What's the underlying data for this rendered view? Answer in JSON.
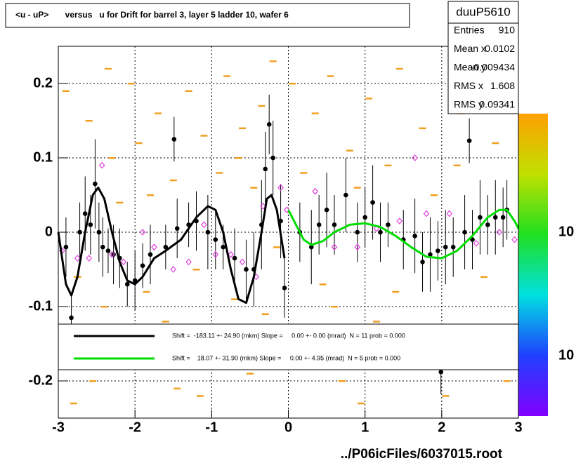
{
  "chart_data": {
    "type": "scatter",
    "title": "<u - uP>       versus   u for Drift for barrel 3, layer 5 ladder 10, wafer 6",
    "x_label": "../P06icFiles/6037015.root",
    "xlim": [
      -3,
      3
    ],
    "ylim": [
      -0.25,
      0.25
    ],
    "xticks": [
      -3,
      -2,
      -1,
      0,
      1,
      2,
      3
    ],
    "yticks": [
      -0.2,
      -0.1,
      0,
      0.1,
      0.2
    ],
    "grid": true,
    "stats": {
      "title": "duuP5610",
      "rows": [
        {
          "label": "Entries",
          "value": 910
        },
        {
          "label": "Mean x",
          "value": 0.0102
        },
        {
          "label": "Mean y",
          "value": -0.009434
        },
        {
          "label": "RMS x",
          "value": 1.608
        },
        {
          "label": "RMS y",
          "value": 0.09341
        }
      ]
    },
    "palette_labels": [
      "10",
      "10"
    ],
    "hits": {
      "color": "#f0a020",
      "x": [
        -2.9,
        -2.75,
        -2.6,
        -2.55,
        -2.4,
        -2.35,
        -2.2,
        -2.1,
        -2.05,
        -1.95,
        -1.85,
        -1.7,
        -1.6,
        -1.5,
        -1.45,
        -1.3,
        -1.2,
        -1.1,
        -1.05,
        -0.9,
        -0.8,
        -0.7,
        -0.6,
        -0.5,
        -0.45,
        -0.35,
        -0.3,
        -0.2,
        -0.15,
        0.05,
        0.15,
        0.2,
        0.35,
        0.45,
        0.55,
        0.7,
        0.8,
        0.9,
        1.05,
        1.15,
        1.3,
        1.45,
        1.6,
        1.75,
        1.9,
        2.05,
        2.25,
        2.4,
        2.55,
        2.7,
        2.85,
        -2.3,
        -1.8,
        -0.65,
        0.6,
        1.4,
        2.2,
        -2.8,
        -1.15,
        0.95
      ],
      "values": [
        0.19,
        -0.06,
        0.15,
        -0.2,
        -0.1,
        0.22,
        0.04,
        -0.17,
        0.2,
        0.12,
        -0.08,
        0.16,
        -0.12,
        0.07,
        -0.21,
        0.19,
        -0.05,
        0.13,
        -0.18,
        0.08,
        0.21,
        -0.09,
        0.14,
        -0.19,
        0.06,
        0.17,
        -0.11,
        0.23,
        -0.02,
        0.2,
        -0.15,
        0.08,
        0.16,
        -0.07,
        0.21,
        -0.2,
        0.11,
        0.06,
        0.18,
        -0.12,
        0.09,
        0.22,
        -0.18,
        0.14,
        0.05,
        -0.22,
        0.16,
        0.2,
        -0.06,
        0.12,
        -0.2,
        0.1,
        0.05,
        0.1,
        -0.1,
        -0.08,
        0.09,
        -0.23,
        -0.22,
        -0.23
      ]
    },
    "series": [
      {
        "name": "profile",
        "color": "#000000",
        "x": [
          -2.9,
          -2.83,
          -2.72,
          -2.65,
          -2.58,
          -2.52,
          -2.47,
          -2.42,
          -2.35,
          -2.28,
          -2.2,
          -2.1,
          -2.0,
          -1.9,
          -1.8,
          -1.6,
          -1.49,
          -1.45,
          -1.3,
          -1.2,
          -1.05,
          -0.95,
          -0.85,
          -0.7,
          -0.55,
          -0.45,
          -0.35,
          -0.3,
          -0.25,
          -0.2,
          -0.1,
          -0.05,
          0.15,
          0.3,
          0.4,
          0.5,
          0.6,
          0.75,
          0.9,
          1.0,
          1.1,
          1.2,
          1.3,
          1.5,
          1.65,
          1.75,
          1.85,
          1.95,
          1.99,
          2.05,
          2.15,
          2.3,
          2.36,
          2.4,
          2.5,
          2.6,
          2.7,
          2.8,
          2.85
        ],
        "values": [
          -0.02,
          -0.115,
          0.0,
          0.025,
          0.01,
          0.065,
          0.0,
          -0.02,
          -0.025,
          -0.03,
          -0.035,
          -0.07,
          -0.065,
          -0.045,
          -0.03,
          -0.02,
          0.125,
          0.005,
          0.01,
          0.015,
          0.0,
          -0.01,
          -0.02,
          -0.035,
          -0.05,
          -0.05,
          0.01,
          0.085,
          0.145,
          0.1,
          0.015,
          -0.075,
          0.0,
          -0.02,
          0.01,
          0.03,
          0.01,
          0.05,
          0.0,
          0.02,
          0.04,
          0.0,
          0.01,
          -0.01,
          -0.005,
          -0.04,
          -0.03,
          -0.025,
          -0.188,
          -0.02,
          -0.02,
          0.0,
          0.123,
          -0.01,
          0.02,
          0.01,
          0.02,
          0.02,
          0.03
        ],
        "errors": [
          0.04,
          0.03,
          0.04,
          0.05,
          0.04,
          0.06,
          0.04,
          0.04,
          0.03,
          0.04,
          0.04,
          0.03,
          0.04,
          0.03,
          0.04,
          0.03,
          0.03,
          0.04,
          0.03,
          0.04,
          0.05,
          0.04,
          0.03,
          0.04,
          0.04,
          0.05,
          0.06,
          0.05,
          0.04,
          0.05,
          0.05,
          0.04,
          0.04,
          0.05,
          0.04,
          0.05,
          0.04,
          0.05,
          0.04,
          0.04,
          0.05,
          0.04,
          0.03,
          0.04,
          0.05,
          0.04,
          0.05,
          0.04,
          0.03,
          0.05,
          0.04,
          0.05,
          0.03,
          0.04,
          0.05,
          0.04,
          0.05,
          0.04,
          0.04
        ]
      },
      {
        "name": "mean",
        "color": "#e040e0",
        "x": [
          -2.95,
          -2.75,
          -2.6,
          -2.43,
          -2.3,
          -2.15,
          -1.9,
          -1.75,
          -1.5,
          -1.3,
          -1.1,
          -0.95,
          -0.75,
          -0.6,
          -0.42,
          -0.33,
          -0.1,
          -0.02,
          0.35,
          0.6,
          0.9,
          1.15,
          1.45,
          1.65,
          1.8,
          2.1,
          2.45,
          2.75,
          2.95
        ],
        "values": [
          -0.025,
          -0.035,
          -0.035,
          0.09,
          -0.03,
          -0.04,
          0.0,
          -0.02,
          -0.05,
          -0.04,
          0.01,
          -0.03,
          -0.03,
          -0.04,
          -0.06,
          0.035,
          0.06,
          0.03,
          0.055,
          -0.02,
          -0.02,
          0.005,
          0.015,
          0.1,
          0.025,
          0.025,
          -0.015,
          0.0,
          -0.01
        ]
      }
    ],
    "fits": [
      {
        "name": "Shift =  -183.11 +- 24.90 (mkm) Slope =     0.00 +- 0.00 (mrad)  N = 11 prob = 0.000",
        "color": "#000000",
        "x": [
          -3,
          -2.9,
          -2.83,
          -2.75,
          -2.65,
          -2.55,
          -2.48,
          -2.4,
          -2.3,
          -2.2,
          -2.1,
          -2.0,
          -1.9,
          -1.75,
          -1.6,
          -1.4,
          -1.2,
          -1.05,
          -0.95,
          -0.85,
          -0.75,
          -0.65,
          -0.55,
          -0.45,
          -0.35,
          -0.28,
          -0.22,
          -0.15,
          -0.05
        ],
        "values": [
          0.0,
          -0.07,
          -0.085,
          -0.06,
          0.0,
          0.05,
          0.06,
          0.045,
          0.0,
          -0.04,
          -0.065,
          -0.07,
          -0.06,
          -0.035,
          -0.025,
          -0.01,
          0.02,
          0.035,
          0.03,
          0.0,
          -0.05,
          -0.09,
          -0.095,
          -0.06,
          0.0,
          0.045,
          0.05,
          0.03,
          -0.035
        ]
      },
      {
        "name": "Shift =    18.07 +- 31.90 (mkm) Slope =     0.00 +- 4.95 (mrad)  N = 5 prob = 0.000",
        "color": "#00dd00",
        "x": [
          0,
          0.1,
          0.2,
          0.3,
          0.45,
          0.6,
          0.8,
          1.0,
          1.2,
          1.4,
          1.6,
          1.8,
          2.0,
          2.2,
          2.4,
          2.6,
          2.75,
          2.85,
          2.95,
          3.0
        ],
        "values": [
          0.03,
          0.01,
          -0.01,
          -0.017,
          -0.012,
          0.0,
          0.01,
          0.012,
          0.007,
          -0.005,
          -0.02,
          -0.033,
          -0.035,
          -0.025,
          -0.005,
          0.02,
          0.03,
          0.03,
          0.015,
          0.005
        ]
      }
    ]
  }
}
